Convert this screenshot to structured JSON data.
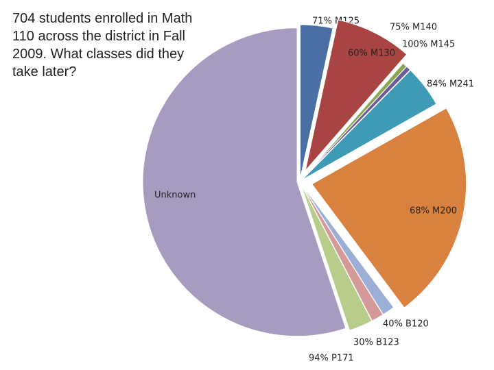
{
  "chart_data": {
    "type": "pie",
    "title": "704 students enrolled in Math 110 across the district in Fall 2009. What classes did they take later?",
    "categories": [
      "71% M125",
      "60% M130",
      "75% M140",
      "100% M145",
      "84% M241",
      "68% M200",
      "40% B120",
      "30% B123",
      "94% P171",
      "Unknown"
    ],
    "values": [
      3.4,
      8,
      0.5,
      0.5,
      4.4,
      23,
      1.3,
      1.3,
      2.5,
      55.1
    ],
    "colors": [
      "#4a6fa5",
      "#a84442",
      "#8aa654",
      "#6e5a9b",
      "#3d9bb5",
      "#d98240",
      "#9aaed6",
      "#d49a9a",
      "#b8cc8c",
      "#a79bbf"
    ],
    "explode": [
      false,
      true,
      false,
      false,
      false,
      true,
      false,
      false,
      false,
      false
    ]
  }
}
